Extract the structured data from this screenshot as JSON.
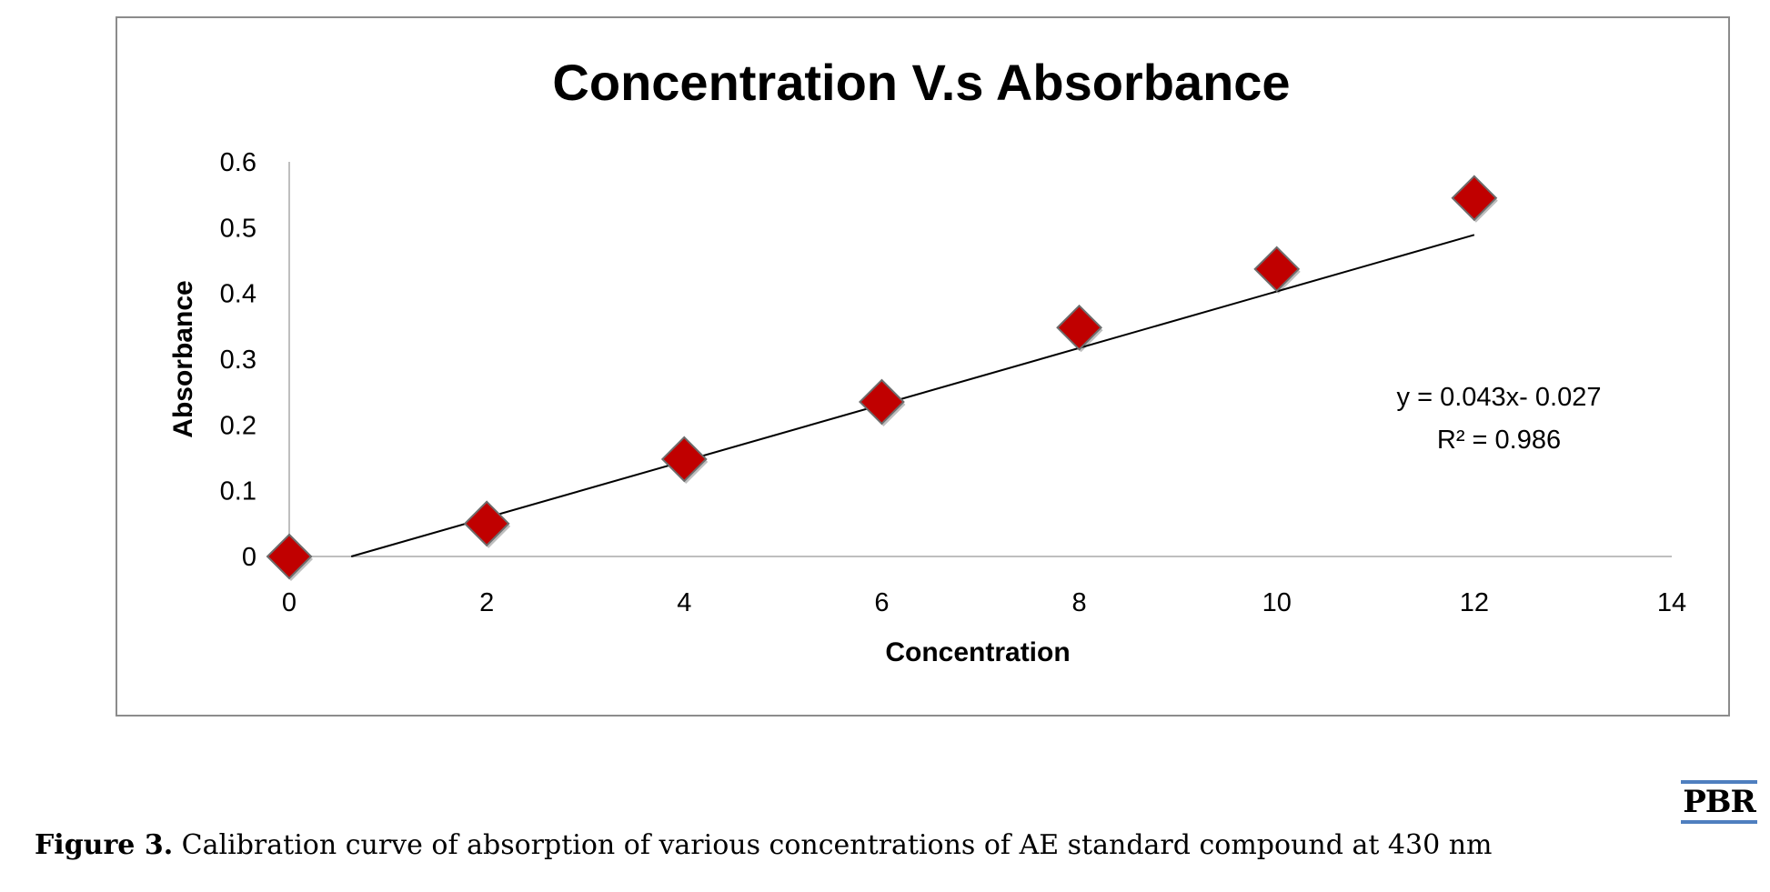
{
  "chart_data": {
    "type": "scatter",
    "title": "Concentration V.s Absorbance",
    "xlabel": "Concentration",
    "ylabel": "Absorbance",
    "xlim": [
      0,
      14
    ],
    "ylim": [
      0,
      0.6
    ],
    "x_ticks": [
      "0",
      "2",
      "4",
      "6",
      "8",
      "10",
      "12",
      "14"
    ],
    "y_ticks": [
      "0",
      "0.1",
      "0.2",
      "0.3",
      "0.4",
      "0.5",
      "0.6"
    ],
    "grid": false,
    "series": [
      {
        "x": [
          0,
          2,
          4,
          6,
          8,
          10,
          12
        ],
        "y": [
          0.0,
          0.05,
          0.148,
          0.235,
          0.348,
          0.437,
          0.545
        ],
        "color": "#c00000",
        "marker": "diamond"
      }
    ],
    "trendline": {
      "type": "linear",
      "slope": 0.043,
      "intercept": -0.027,
      "x_range": [
        0,
        12
      ],
      "equation": "y = 0.043x- 0.027",
      "r_squared": "R² = 0.986"
    }
  },
  "caption": {
    "label": "Figure 3.",
    "text": " Calibration curve of absorption of various concentrations of AE standard compound at 430 nm"
  },
  "logo": {
    "text": "PBR",
    "color": "#4f7fbf"
  }
}
